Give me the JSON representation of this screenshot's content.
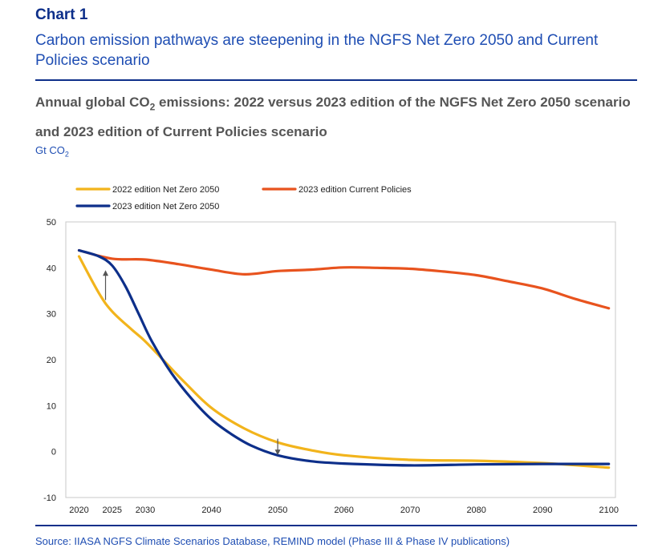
{
  "header": {
    "chart_number": "Chart 1",
    "title": "Carbon emission pathways are steepening in the NGFS Net Zero 2050 and Current Policies scenario",
    "subtitle_part1": "Annual global CO",
    "subtitle_sub": "2",
    "subtitle_part2": " emissions: 2022 versus 2023 edition of the NGFS Net Zero 2050 scenario and 2023 edition of Current Policies scenario",
    "unit_main": "Gt CO",
    "unit_sub": "2"
  },
  "footer": {
    "source": "Source: IIASA NGFS Climate Scenarios Database, REMIND model (Phase III & Phase IV publications)"
  },
  "colors": {
    "nz2022": "#f2b41c",
    "cp2023": "#e8531e",
    "nz2023": "#0d2f8a",
    "axis": "#c8c8c8",
    "arrow": "#555555"
  },
  "chart_data": {
    "type": "line",
    "title": "Annual global CO2 emissions: 2022 versus 2023 edition of the NGFS Net Zero 2050 scenario and 2023 edition of Current Policies scenario",
    "ylabel": "Gt CO2",
    "xlabel": "",
    "xlim": [
      2018,
      2101
    ],
    "ylim": [
      -10,
      50
    ],
    "xticks": [
      2020,
      2025,
      2030,
      2040,
      2050,
      2060,
      2070,
      2080,
      2090,
      2100
    ],
    "yticks": [
      -10,
      0,
      10,
      20,
      30,
      40,
      50
    ],
    "grid": false,
    "legend_position": "top-left",
    "series": [
      {
        "name": "2022 edition Net Zero 2050",
        "color_key": "nz2022",
        "x": [
          2020,
          2023,
          2025,
          2028,
          2030,
          2033,
          2036,
          2040,
          2045,
          2050,
          2055,
          2060,
          2070,
          2080,
          2090,
          2100
        ],
        "y": [
          42.5,
          34.5,
          30.5,
          26.5,
          24,
          19.5,
          15,
          9.5,
          5,
          2,
          0.3,
          -0.8,
          -1.8,
          -2,
          -2.5,
          -3.5
        ]
      },
      {
        "name": "2023 edition Current Policies",
        "color_key": "cp2023",
        "x": [
          2020,
          2025,
          2030,
          2035,
          2040,
          2045,
          2050,
          2055,
          2060,
          2065,
          2070,
          2075,
          2080,
          2085,
          2090,
          2095,
          2100
        ],
        "y": [
          43.8,
          42,
          41.8,
          40.8,
          39.6,
          38.6,
          39.3,
          39.6,
          40.1,
          40,
          39.8,
          39.2,
          38.4,
          37,
          35.5,
          33.2,
          31.2
        ]
      },
      {
        "name": "2023 edition Net Zero 2050",
        "color_key": "nz2023",
        "x": [
          2020,
          2023,
          2025,
          2027,
          2029,
          2031,
          2034,
          2037,
          2040,
          2043,
          2046,
          2050,
          2055,
          2060,
          2070,
          2080,
          2090,
          2100
        ],
        "y": [
          43.8,
          42.5,
          40.5,
          36,
          30,
          24,
          17,
          11.5,
          7,
          3.8,
          1.3,
          -0.8,
          -2.1,
          -2.6,
          -3,
          -2.8,
          -2.7,
          -2.7
        ]
      }
    ],
    "annotations": [
      {
        "type": "arrow",
        "x": 2024,
        "from": 33,
        "to": 39.5
      },
      {
        "type": "arrow",
        "x": 2050,
        "from": 2.8,
        "to": -0.8
      }
    ]
  }
}
